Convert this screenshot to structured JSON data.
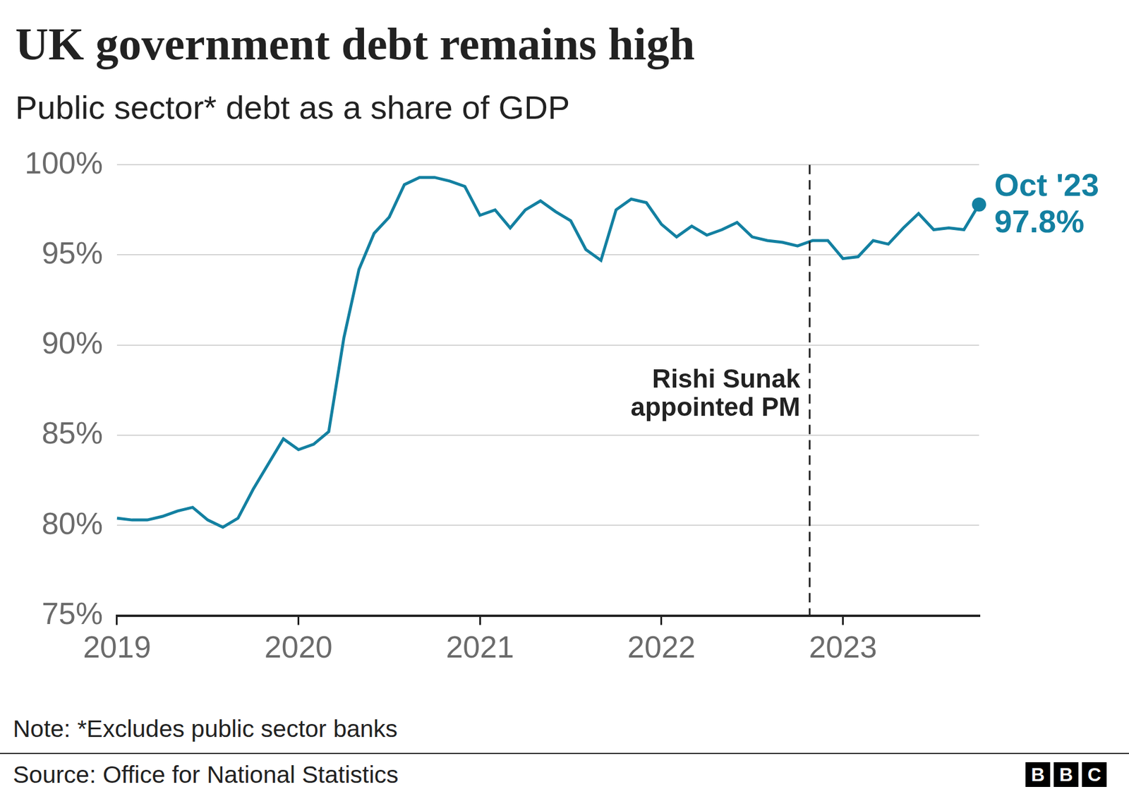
{
  "chart_data": {
    "type": "line",
    "title": "UK government debt remains high",
    "subtitle": "Public sector* debt as a share of GDP",
    "categories": [
      "2019",
      null,
      null,
      null,
      null,
      null,
      null,
      null,
      null,
      null,
      null,
      null,
      "2020",
      null,
      null,
      null,
      null,
      null,
      null,
      null,
      null,
      null,
      null,
      null,
      "2021",
      null,
      null,
      null,
      null,
      null,
      null,
      null,
      null,
      null,
      null,
      null,
      "2022",
      null,
      null,
      null,
      null,
      null,
      null,
      null,
      null,
      null,
      null,
      null,
      "2023",
      null,
      null,
      null,
      null,
      null,
      null,
      null,
      null,
      null
    ],
    "values": [
      80.4,
      80.3,
      80.3,
      80.5,
      80.8,
      81.0,
      80.3,
      79.9,
      80.4,
      82.0,
      83.4,
      84.8,
      84.2,
      84.5,
      85.2,
      90.4,
      94.2,
      96.2,
      97.1,
      98.9,
      99.3,
      99.3,
      99.1,
      98.8,
      97.2,
      97.5,
      96.5,
      97.5,
      98.0,
      97.4,
      96.9,
      95.3,
      94.7,
      97.5,
      98.1,
      97.9,
      96.7,
      96.0,
      96.6,
      96.1,
      96.4,
      96.8,
      96.0,
      95.8,
      95.7,
      95.5,
      95.8,
      95.8,
      94.8,
      94.9,
      95.8,
      95.6,
      96.5,
      97.3,
      96.4,
      96.5,
      96.4,
      97.8
    ],
    "color": "#1380a1",
    "ylim": [
      75,
      100
    ],
    "yticks": [
      {
        "value": 75,
        "label": "75%"
      },
      {
        "value": 80,
        "label": "80%"
      },
      {
        "value": 85,
        "label": "85%"
      },
      {
        "value": 90,
        "label": "90%"
      },
      {
        "value": 95,
        "label": "95%"
      },
      {
        "value": 100,
        "label": "100%"
      }
    ],
    "grid": true,
    "annotations": [
      {
        "text": [
          "Rishi Sunak",
          "appointed PM"
        ],
        "x": 45.8,
        "line_style": "dashed"
      },
      {
        "text": [
          "Oct '23",
          "97.8%"
        ],
        "x": 57,
        "y": 97.8,
        "marker": "circle"
      }
    ],
    "note": "Note: *Excludes public sector banks",
    "source": "Source: Office for National Statistics",
    "logo": "BBC"
  }
}
